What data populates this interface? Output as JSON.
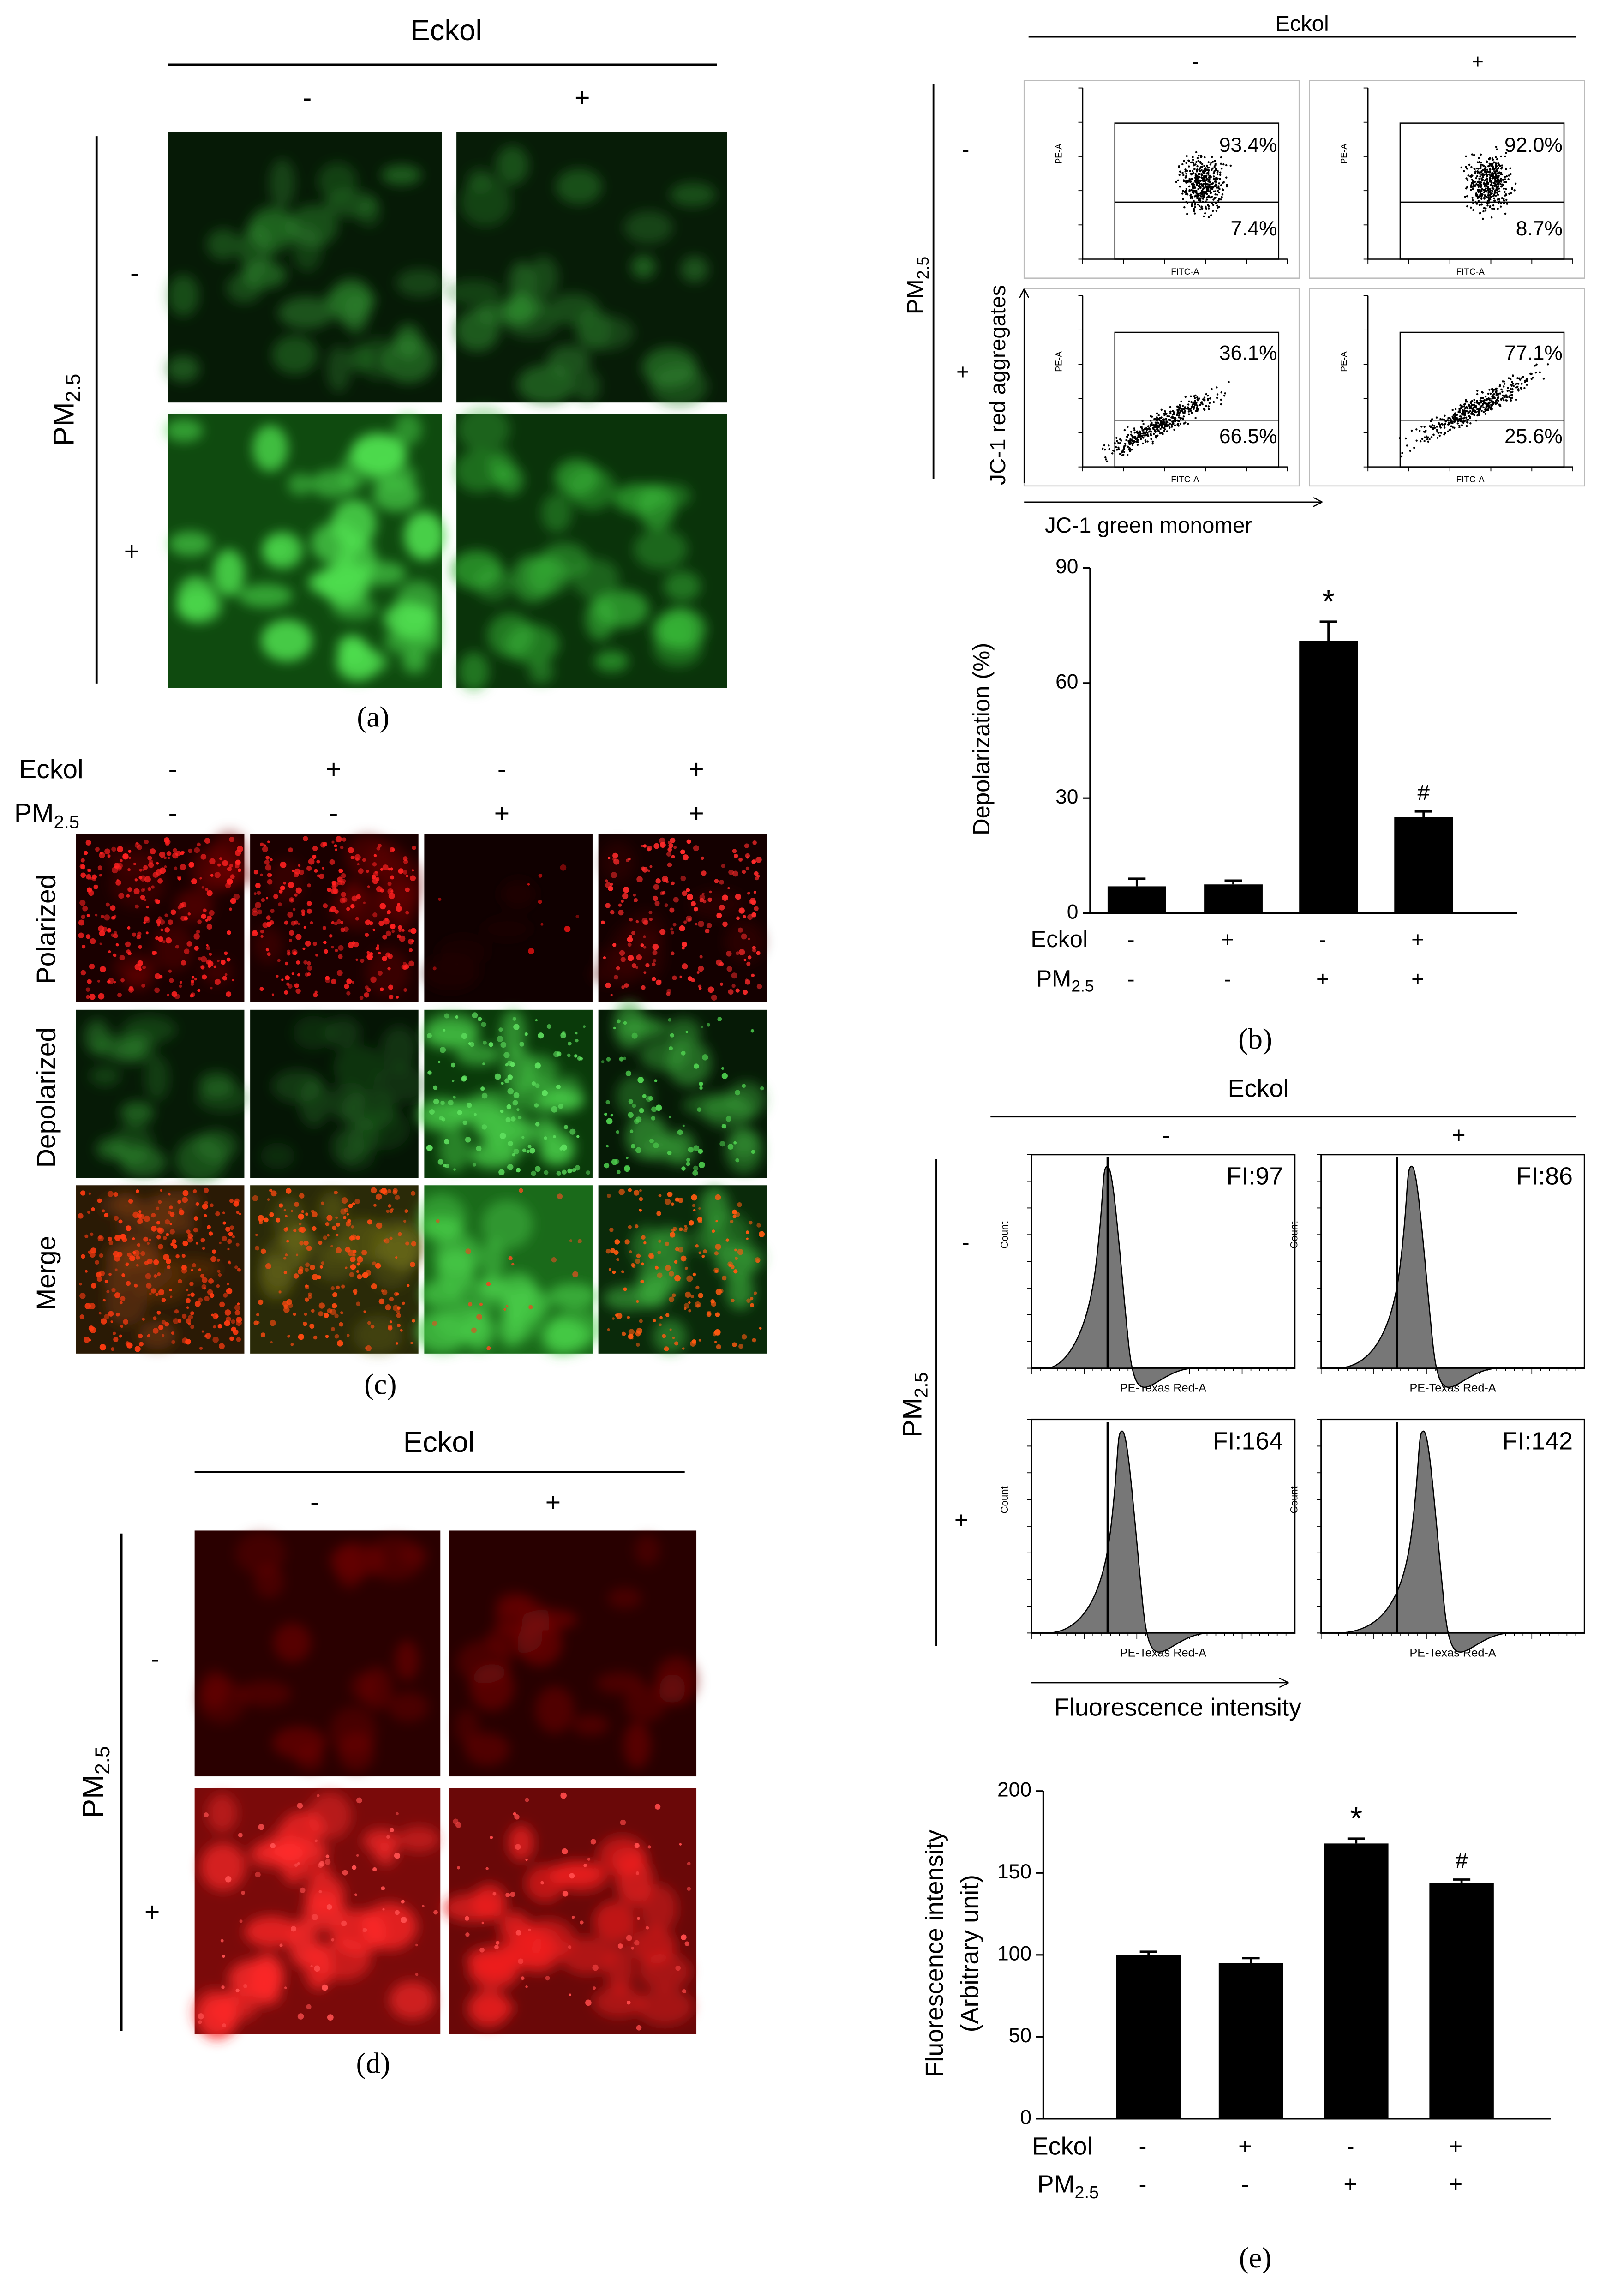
{
  "panel_a": {
    "caption": "(a)",
    "column_header": "Eckol",
    "columns": [
      "-",
      "+"
    ],
    "row_header": "PM",
    "row_header_sub": "2.5",
    "rows": [
      "-",
      "+"
    ]
  },
  "panel_b": {
    "caption": "(b)",
    "column_header": "Eckol",
    "columns": [
      "-",
      "+"
    ],
    "row_header": "PM",
    "row_header_sub": "2.5",
    "rows": [
      "-",
      "+"
    ],
    "plots": [
      {
        "upper": "93.4%",
        "lower": "7.4%"
      },
      {
        "upper": "92.0%",
        "lower": "8.7%"
      },
      {
        "upper": "36.1%",
        "lower": "66.5%"
      },
      {
        "upper": "77.1%",
        "lower": "25.6%"
      }
    ],
    "plot_x_label": "FITC-A",
    "plot_y_label": "PE-A",
    "x_axis_label": "JC-1 green monomer",
    "y_axis_label": "JC-1 red aggregates"
  },
  "panel_c": {
    "caption": "(c)",
    "conditions": [
      {
        "label": "Eckol",
        "values": [
          "-",
          "+",
          "-",
          "+"
        ]
      },
      {
        "label": "PM",
        "label_sub": "2.5",
        "values": [
          "-",
          "-",
          "+",
          "+"
        ]
      }
    ],
    "rows": [
      "Polarized",
      "Depolarized",
      "Merge"
    ]
  },
  "panel_d": {
    "caption": "(d)",
    "column_header": "Eckol",
    "columns": [
      "-",
      "+"
    ],
    "row_header": "PM",
    "row_header_sub": "2.5",
    "rows": [
      "-",
      "+"
    ]
  },
  "panel_e": {
    "caption": "(e)",
    "column_header": "Eckol",
    "columns": [
      "-",
      "+"
    ],
    "row_header": "PM",
    "row_header_sub": "2.5",
    "rows": [
      "-",
      "+"
    ],
    "plots": [
      "FI:97",
      "FI:86",
      "FI:164",
      "FI:142"
    ],
    "plot_x_label": "PE-Texas Red-A",
    "plot_y_label": "Count",
    "x_axis_label": "Fluorescence  intensity"
  },
  "chart_data": [
    {
      "type": "bar",
      "ylabel": "Depolarization (%)",
      "values": [
        7,
        7.5,
        71,
        25
      ],
      "errors": [
        2,
        1,
        5,
        1.5
      ],
      "color": "#000000",
      "ylim": [
        0,
        90
      ],
      "yticks": [
        0,
        30,
        60,
        90
      ],
      "annotations": [
        {
          "index": 2,
          "text": "*"
        },
        {
          "index": 3,
          "text": "#"
        }
      ],
      "conditions": [
        {
          "label": "Eckol",
          "values": [
            "-",
            "+",
            "-",
            "+"
          ]
        },
        {
          "label": "PM",
          "label_sub": "2.5",
          "values": [
            "-",
            "-",
            "+",
            "+"
          ]
        }
      ]
    },
    {
      "type": "bar",
      "ylabel": [
        "Fluorescence intensity",
        "(Arbitrary unit)"
      ],
      "values": [
        100,
        95,
        168,
        144
      ],
      "errors": [
        2,
        3,
        3,
        2
      ],
      "color": "#000000",
      "ylim": [
        0,
        200
      ],
      "yticks": [
        0,
        50,
        100,
        150,
        200
      ],
      "annotations": [
        {
          "index": 2,
          "text": "*"
        },
        {
          "index": 3,
          "text": "#"
        }
      ],
      "conditions": [
        {
          "label": "Eckol",
          "values": [
            "-",
            "+",
            "-",
            "+"
          ]
        },
        {
          "label": "PM",
          "label_sub": "2.5",
          "values": [
            "-",
            "-",
            "+",
            "+"
          ]
        }
      ]
    }
  ]
}
